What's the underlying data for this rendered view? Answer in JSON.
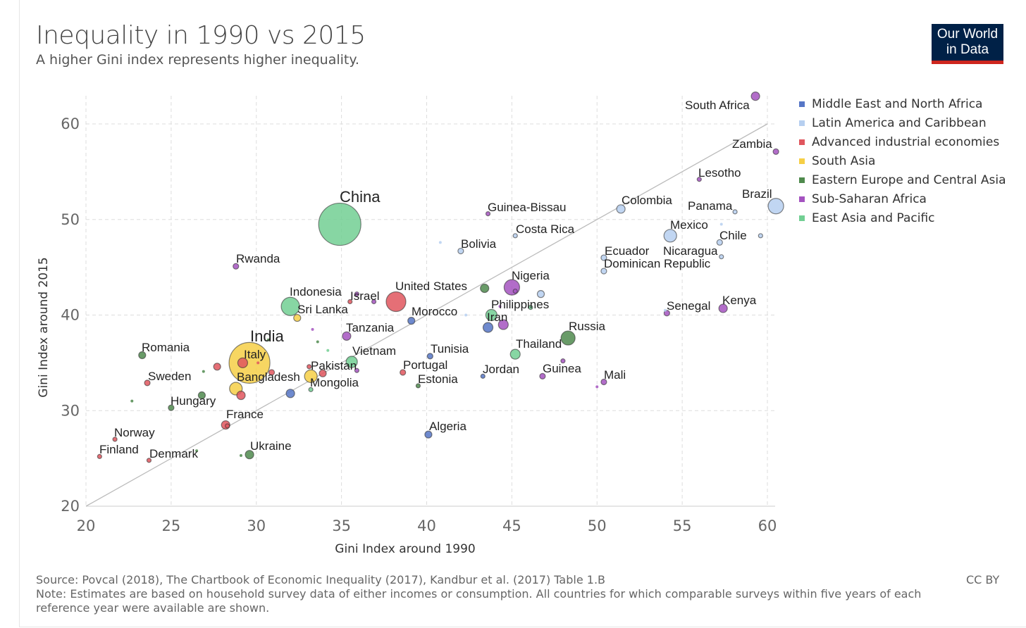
{
  "header": {
    "title": "Inequality in 1990 vs 2015",
    "subtitle": "A higher Gini index represents higher inequality.",
    "logo_line1": "Our World",
    "logo_line2": "in Data"
  },
  "footer": {
    "source": "Source: Povcal (2018), The Chartbook of Economic Inequality (2017), Kandbur et al. (2017) Table 1.B",
    "note": "Note: Estimates are based on household survey data of either incomes or consumption. All countries for which comparable surveys within five years of each reference year were available are shown.",
    "license": "CC BY"
  },
  "chart_data": {
    "type": "scatter",
    "title": "Inequality in 1990 vs 2015",
    "xlabel": "Gini Index around 1990",
    "ylabel": "Gini Index around 2015",
    "xlim": [
      20,
      61
    ],
    "ylim": [
      20,
      63
    ],
    "xticks": [
      "20",
      "25",
      "30",
      "35",
      "40",
      "45",
      "50",
      "55",
      "60"
    ],
    "yticks": [
      "20",
      "30",
      "40",
      "50",
      "60"
    ],
    "grid": true,
    "reference_line": "y = x",
    "legend_position": "right",
    "regions": [
      {
        "name": "Middle East and North Africa",
        "color": "#5676c6"
      },
      {
        "name": "Latin America and Caribbean",
        "color": "#b6cff0"
      },
      {
        "name": "Advanced industrial economies",
        "color": "#e0565e"
      },
      {
        "name": "South Asia",
        "color": "#f6cf46"
      },
      {
        "name": "Eastern Europe and Central Asia",
        "color": "#4f8a4d"
      },
      {
        "name": "Sub-Saharan Africa",
        "color": "#a453c0"
      },
      {
        "name": "East Asia and Pacific",
        "color": "#72cf93"
      }
    ],
    "points": [
      {
        "label": "China",
        "x": 34.9,
        "y": 49.5,
        "region": 6,
        "size": 30
      },
      {
        "label": "India",
        "x": 29.6,
        "y": 35.0,
        "region": 3,
        "size": 29
      },
      {
        "label": "South Africa",
        "x": 59.3,
        "y": 62.9,
        "region": 5,
        "size": 6
      },
      {
        "label": "Zambia",
        "x": 60.5,
        "y": 57.1,
        "region": 5,
        "size": 4
      },
      {
        "label": "Lesotho",
        "x": 56.0,
        "y": 54.2,
        "region": 5,
        "size": 3
      },
      {
        "label": "Brazil",
        "x": 60.5,
        "y": 51.4,
        "region": 1,
        "size": 11
      },
      {
        "label": "Panama",
        "x": 58.1,
        "y": 50.8,
        "region": 1,
        "size": 3
      },
      {
        "label": "Colombia",
        "x": 51.4,
        "y": 51.1,
        "region": 1,
        "size": 6
      },
      {
        "label": "Guinea-Bissau",
        "x": 43.6,
        "y": 50.6,
        "region": 5,
        "size": 3
      },
      {
        "label": "Mexico",
        "x": 54.3,
        "y": 48.3,
        "region": 1,
        "size": 9
      },
      {
        "label": "",
        "x": 57.3,
        "y": 49.5,
        "region": 1,
        "size": 2
      },
      {
        "label": "Chile",
        "x": 57.2,
        "y": 47.6,
        "region": 1,
        "size": 4
      },
      {
        "label": "",
        "x": 59.6,
        "y": 48.3,
        "region": 1,
        "size": 3
      },
      {
        "label": "Costa Rica",
        "x": 45.2,
        "y": 48.3,
        "region": 1,
        "size": 3
      },
      {
        "label": "Bolivia",
        "x": 42.0,
        "y": 46.7,
        "region": 1,
        "size": 4
      },
      {
        "label": "",
        "x": 40.8,
        "y": 47.6,
        "region": 1,
        "size": 2
      },
      {
        "label": "Ecuador",
        "x": 50.4,
        "y": 46.0,
        "region": 1,
        "size": 4
      },
      {
        "label": "Nicaragua",
        "x": 57.3,
        "y": 46.1,
        "region": 1,
        "size": 3
      },
      {
        "label": "Dominican Republic",
        "x": 50.4,
        "y": 44.6,
        "region": 1,
        "size": 4
      },
      {
        "label": "Rwanda",
        "x": 28.8,
        "y": 45.1,
        "region": 5,
        "size": 4
      },
      {
        "label": "Nigeria",
        "x": 45.0,
        "y": 42.9,
        "region": 5,
        "size": 11
      },
      {
        "label": "",
        "x": 45.2,
        "y": 42.5,
        "region": 5,
        "size": 3
      },
      {
        "label": "",
        "x": 46.7,
        "y": 42.2,
        "region": 1,
        "size": 5
      },
      {
        "label": "",
        "x": 44.3,
        "y": 40.9,
        "region": 5,
        "size": 2
      },
      {
        "label": "Philippines",
        "x": 46.1,
        "y": 40.8,
        "region": 6,
        "size": 3
      },
      {
        "label": "United States",
        "x": 38.2,
        "y": 41.4,
        "region": 2,
        "size": 14
      },
      {
        "label": "",
        "x": 43.4,
        "y": 42.8,
        "region": 4,
        "size": 6
      },
      {
        "label": "Israel",
        "x": 35.5,
        "y": 41.4,
        "region": 2,
        "size": 3
      },
      {
        "label": "",
        "x": 35.9,
        "y": 42.2,
        "region": 5,
        "size": 3
      },
      {
        "label": "",
        "x": 36.9,
        "y": 41.4,
        "region": 5,
        "size": 3
      },
      {
        "label": "Indonesia",
        "x": 32.0,
        "y": 40.9,
        "region": 6,
        "size": 13
      },
      {
        "label": "Sri Lanka",
        "x": 32.4,
        "y": 39.7,
        "region": 3,
        "size": 5
      },
      {
        "label": "Morocco",
        "x": 39.1,
        "y": 39.4,
        "region": 0,
        "size": 5
      },
      {
        "label": "",
        "x": 42.3,
        "y": 40.0,
        "region": 1,
        "size": 2
      },
      {
        "label": "Iran",
        "x": 43.8,
        "y": 40.0,
        "region": 6,
        "size": 8
      },
      {
        "label": "",
        "x": 43.6,
        "y": 38.7,
        "region": 0,
        "size": 7
      },
      {
        "label": "",
        "x": 44.5,
        "y": 39.0,
        "region": 5,
        "size": 7
      },
      {
        "label": "Senegal",
        "x": 54.1,
        "y": 40.2,
        "region": 5,
        "size": 4
      },
      {
        "label": "",
        "x": 54.0,
        "y": 40.5,
        "region": 1,
        "size": 2
      },
      {
        "label": "Kenya",
        "x": 57.4,
        "y": 40.7,
        "region": 5,
        "size": 6
      },
      {
        "label": "Russia",
        "x": 48.3,
        "y": 37.6,
        "region": 4,
        "size": 10
      },
      {
        "label": "Thailand",
        "x": 45.2,
        "y": 35.9,
        "region": 6,
        "size": 7
      },
      {
        "label": "Tanzania",
        "x": 35.3,
        "y": 37.8,
        "region": 5,
        "size": 6
      },
      {
        "label": "",
        "x": 33.3,
        "y": 38.5,
        "region": 5,
        "size": 2
      },
      {
        "label": "",
        "x": 33.6,
        "y": 37.2,
        "region": 4,
        "size": 2
      },
      {
        "label": "",
        "x": 34.2,
        "y": 36.3,
        "region": 6,
        "size": 2
      },
      {
        "label": "",
        "x": 30.7,
        "y": 37.4,
        "region": 4,
        "size": 2
      },
      {
        "label": "Italy",
        "x": 29.2,
        "y": 35.0,
        "region": 2,
        "size": 7
      },
      {
        "label": "",
        "x": 30.1,
        "y": 35.0,
        "region": 2,
        "size": 2
      },
      {
        "label": "Romania",
        "x": 23.3,
        "y": 35.8,
        "region": 4,
        "size": 5
      },
      {
        "label": "Vietnam",
        "x": 35.6,
        "y": 35.1,
        "region": 6,
        "size": 8
      },
      {
        "label": "",
        "x": 35.9,
        "y": 34.2,
        "region": 5,
        "size": 3
      },
      {
        "label": "Tunisia",
        "x": 40.2,
        "y": 35.7,
        "region": 0,
        "size": 4
      },
      {
        "label": "Pakistan",
        "x": 33.2,
        "y": 33.6,
        "region": 3,
        "size": 9
      },
      {
        "label": "",
        "x": 33.9,
        "y": 33.9,
        "region": 2,
        "size": 5
      },
      {
        "label": "",
        "x": 33.1,
        "y": 34.6,
        "region": 2,
        "size": 3
      },
      {
        "label": "Mongolia",
        "x": 33.2,
        "y": 32.2,
        "region": 6,
        "size": 3
      },
      {
        "label": "Bangladesh",
        "x": 28.8,
        "y": 32.3,
        "region": 3,
        "size": 9
      },
      {
        "label": "",
        "x": 29.1,
        "y": 31.6,
        "region": 2,
        "size": 6
      },
      {
        "label": "Sweden",
        "x": 23.6,
        "y": 32.9,
        "region": 2,
        "size": 4
      },
      {
        "label": "",
        "x": 26.9,
        "y": 34.1,
        "region": 4,
        "size": 2
      },
      {
        "label": "",
        "x": 27.7,
        "y": 34.6,
        "region": 2,
        "size": 5
      },
      {
        "label": "",
        "x": 30.9,
        "y": 34.0,
        "region": 2,
        "size": 4
      },
      {
        "label": "",
        "x": 32.0,
        "y": 31.8,
        "region": 0,
        "size": 6
      },
      {
        "label": "Portugal",
        "x": 38.6,
        "y": 34.0,
        "region": 2,
        "size": 4
      },
      {
        "label": "Estonia",
        "x": 39.5,
        "y": 32.6,
        "region": 4,
        "size": 3
      },
      {
        "label": "Jordan",
        "x": 43.3,
        "y": 33.6,
        "region": 0,
        "size": 3
      },
      {
        "label": "Guinea",
        "x": 46.8,
        "y": 33.6,
        "region": 5,
        "size": 4
      },
      {
        "label": "",
        "x": 48.0,
        "y": 35.2,
        "region": 5,
        "size": 3
      },
      {
        "label": "Mali",
        "x": 50.4,
        "y": 33.0,
        "region": 5,
        "size": 4
      },
      {
        "label": "",
        "x": 50.0,
        "y": 32.5,
        "region": 5,
        "size": 2
      },
      {
        "label": "Hungary",
        "x": 25.0,
        "y": 30.3,
        "region": 4,
        "size": 4
      },
      {
        "label": "",
        "x": 26.8,
        "y": 31.6,
        "region": 4,
        "size": 5
      },
      {
        "label": "",
        "x": 22.7,
        "y": 31.0,
        "region": 4,
        "size": 2
      },
      {
        "label": "France",
        "x": 28.2,
        "y": 28.5,
        "region": 2,
        "size": 6
      },
      {
        "label": "",
        "x": 28.3,
        "y": 28.4,
        "region": 2,
        "size": 3
      },
      {
        "label": "Algeria",
        "x": 40.1,
        "y": 27.5,
        "region": 0,
        "size": 5
      },
      {
        "label": "Norway",
        "x": 21.7,
        "y": 27.0,
        "region": 2,
        "size": 3
      },
      {
        "label": "Finland",
        "x": 20.8,
        "y": 25.2,
        "region": 2,
        "size": 3
      },
      {
        "label": "Denmark",
        "x": 23.7,
        "y": 24.8,
        "region": 2,
        "size": 3
      },
      {
        "label": "",
        "x": 26.5,
        "y": 25.8,
        "region": 4,
        "size": 2
      },
      {
        "label": "Ukraine",
        "x": 29.6,
        "y": 25.4,
        "region": 4,
        "size": 6
      },
      {
        "label": "",
        "x": 29.1,
        "y": 25.3,
        "region": 4,
        "size": 2
      }
    ]
  }
}
